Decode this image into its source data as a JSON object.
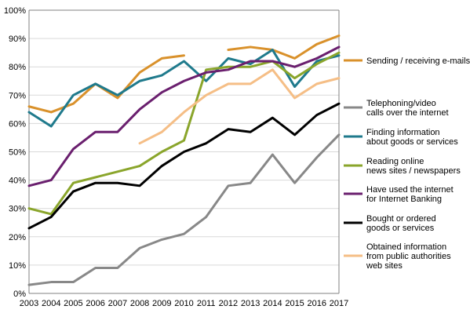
{
  "chart_data": {
    "type": "line",
    "title": "",
    "xlabel": "",
    "ylabel": "",
    "x": [
      "2003",
      "2004",
      "2005",
      "2006",
      "2007",
      "2008",
      "2009",
      "2010",
      "2011",
      "2012",
      "2013",
      "2014",
      "2015",
      "2016",
      "2017"
    ],
    "ylim": [
      0,
      100
    ],
    "yticks": [
      0,
      10,
      20,
      30,
      40,
      50,
      60,
      70,
      80,
      90,
      100
    ],
    "ytick_labels": [
      "0%",
      "10%",
      "20%",
      "30%",
      "40%",
      "50%",
      "60%",
      "70%",
      "80%",
      "90%",
      "100%"
    ],
    "grid": true,
    "legend_position": "right",
    "series": [
      {
        "name_lines": [
          "Sending / receiving e-mails"
        ],
        "color": "#d9912b",
        "values": [
          66,
          64,
          67,
          74,
          69,
          78,
          83,
          84,
          null,
          86,
          87,
          86,
          83,
          88,
          91
        ]
      },
      {
        "name_lines": [
          "Telephoning/video",
          "calls over the internet"
        ],
        "color": "#888888",
        "values": [
          3,
          4,
          4,
          9,
          9,
          16,
          19,
          21,
          27,
          38,
          39,
          49,
          39,
          48,
          56
        ]
      },
      {
        "name_lines": [
          "Finding information",
          "about goods or services"
        ],
        "color": "#1f7a8c",
        "values": [
          64,
          59,
          70,
          74,
          70,
          75,
          77,
          82,
          75,
          83,
          81,
          86,
          73,
          82,
          84
        ]
      },
      {
        "name_lines": [
          "Reading online",
          "news sites / newspapers"
        ],
        "color": "#8aa52b",
        "values": [
          30,
          28,
          39,
          41,
          43,
          45,
          50,
          54,
          79,
          80,
          80,
          82,
          76,
          81,
          85
        ]
      },
      {
        "name_lines": [
          "Have used the internet",
          "for Internet Banking"
        ],
        "color": "#6a1f6e",
        "values": [
          38,
          40,
          51,
          57,
          57,
          65,
          71,
          75,
          78,
          79,
          82,
          82,
          80,
          83,
          87
        ]
      },
      {
        "name_lines": [
          "Bought or ordered",
          "goods or services"
        ],
        "color": "#000000",
        "values": [
          23,
          27,
          36,
          39,
          39,
          38,
          45,
          50,
          53,
          58,
          57,
          62,
          56,
          63,
          67
        ]
      },
      {
        "name_lines": [
          "Obtained information",
          "from public authorities",
          "web sites"
        ],
        "color": "#f5be86",
        "values": [
          null,
          null,
          null,
          null,
          null,
          53,
          57,
          64,
          70,
          74,
          74,
          79,
          69,
          74,
          76
        ]
      }
    ]
  }
}
